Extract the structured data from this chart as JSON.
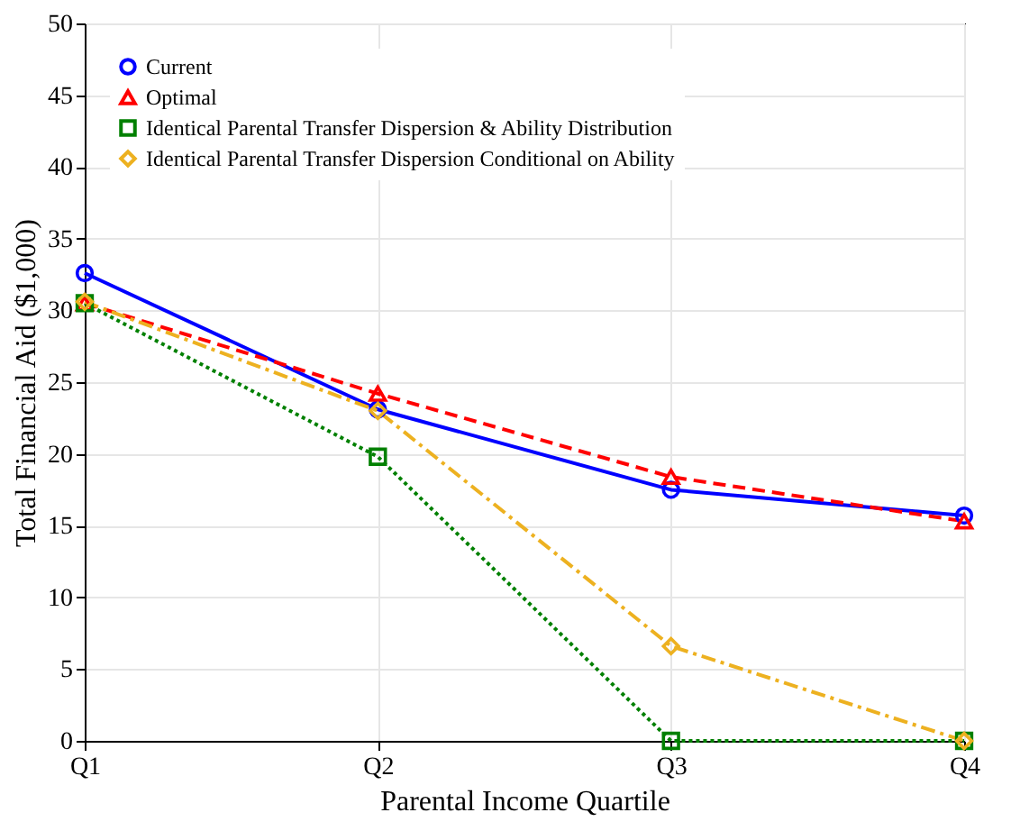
{
  "chart_data": {
    "type": "line",
    "xlabel": "Parental Income Quartile",
    "ylabel": "Total Financial Aid ($1,000)",
    "categories": [
      "Q1",
      "Q2",
      "Q3",
      "Q4"
    ],
    "ylim": [
      0,
      50
    ],
    "yticks": [
      0,
      5,
      10,
      15,
      20,
      25,
      30,
      35,
      40,
      45,
      50
    ],
    "grid": true,
    "legend": "top left",
    "series": [
      {
        "name": "Current",
        "color": "#0000ff",
        "marker": "circle",
        "line_style": "solid",
        "values": [
          32.6,
          23.1,
          17.5,
          15.7
        ]
      },
      {
        "name": "Optimal",
        "color": "#ff0000",
        "marker": "triangle",
        "line_style": "dashed",
        "values": [
          30.5,
          24.2,
          18.4,
          15.3
        ]
      },
      {
        "name": "Identical Parental Transfer Dispersion & Ability Distribution",
        "color": "#008000",
        "marker": "square",
        "line_style": "dotted",
        "values": [
          30.5,
          19.8,
          0,
          0
        ]
      },
      {
        "name": "Identical Parental Transfer Dispersion Conditional on Ability",
        "color": "#edb120",
        "marker": "diamond",
        "line_style": "dashdot",
        "values": [
          30.6,
          23.0,
          6.6,
          0
        ]
      }
    ]
  }
}
